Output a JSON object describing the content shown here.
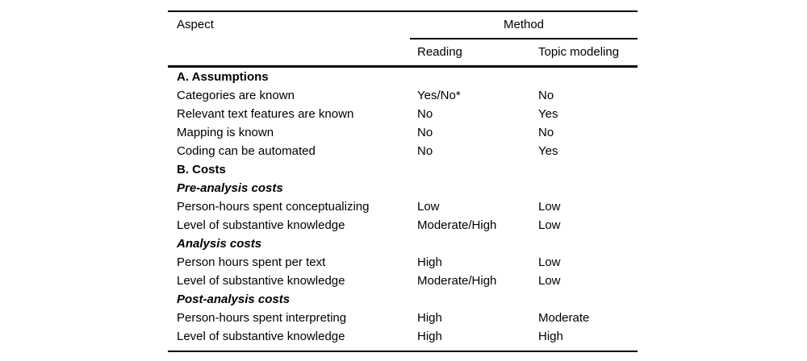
{
  "colors": {
    "background": "#ffffff",
    "text": "#000000",
    "rule": "#000000"
  },
  "table": {
    "header": {
      "aspect": "Aspect",
      "method": "Method",
      "columns": [
        "Reading",
        "Topic modeling"
      ]
    },
    "rows": [
      {
        "style": "section",
        "label": "A. Assumptions",
        "reading": "",
        "topic": ""
      },
      {
        "style": "normal",
        "label": "Categories are known",
        "reading": "Yes/No*",
        "topic": "No"
      },
      {
        "style": "normal",
        "label": "Relevant text features are known",
        "reading": "No",
        "topic": "Yes"
      },
      {
        "style": "normal",
        "label": "Mapping is known",
        "reading": "No",
        "topic": "No"
      },
      {
        "style": "normal",
        "label": "Coding can be automated",
        "reading": "No",
        "topic": "Yes"
      },
      {
        "style": "section",
        "label": "B. Costs",
        "reading": "",
        "topic": ""
      },
      {
        "style": "subsection",
        "label": "Pre-analysis costs",
        "reading": "",
        "topic": ""
      },
      {
        "style": "normal",
        "label": "Person-hours spent conceptualizing",
        "reading": "Low",
        "topic": "Low"
      },
      {
        "style": "normal",
        "label": "Level of substantive knowledge",
        "reading": "Moderate/High",
        "topic": "Low"
      },
      {
        "style": "subsection",
        "label": "Analysis costs",
        "reading": "",
        "topic": ""
      },
      {
        "style": "normal",
        "label": "Person hours spent per text",
        "reading": "High",
        "topic": "Low"
      },
      {
        "style": "normal",
        "label": "Level of substantive knowledge",
        "reading": "Moderate/High",
        "topic": "Low"
      },
      {
        "style": "subsection",
        "label": "Post-analysis costs",
        "reading": "",
        "topic": ""
      },
      {
        "style": "normal",
        "label": "Person-hours spent interpreting",
        "reading": "High",
        "topic": "Moderate"
      },
      {
        "style": "normal",
        "label": "Level of substantive knowledge",
        "reading": "High",
        "topic": "High"
      }
    ]
  }
}
